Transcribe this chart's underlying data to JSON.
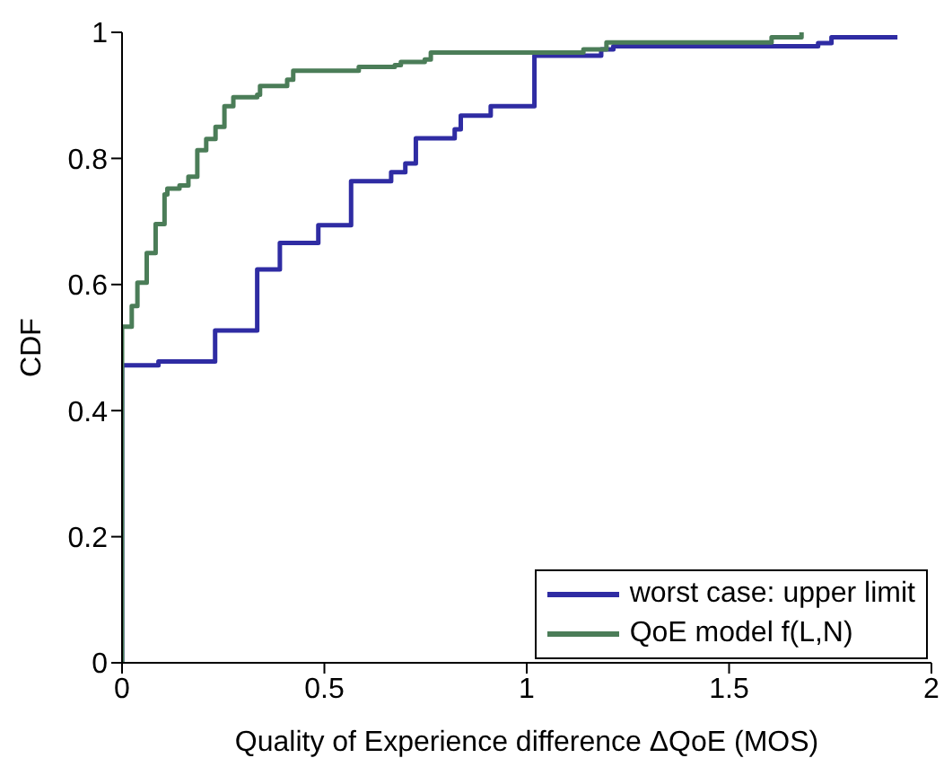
{
  "chart_data": {
    "type": "step",
    "xlabel": "Quality of Experience difference ΔQoE (MOS)",
    "ylabel": "CDF",
    "xlim": [
      0,
      2
    ],
    "xticks": [
      0,
      0.5,
      1,
      1.5,
      2
    ],
    "ylim": [
      0,
      1
    ],
    "yticks": [
      0,
      0.2,
      0.4,
      0.6,
      0.8,
      1
    ],
    "legend": "bottom right",
    "line_style": "solid",
    "marker": "none",
    "series": [
      {
        "name": "worst case: upper limit",
        "color": "#2f2ca3",
        "x": [
          0,
          0,
          0.09,
          0.23,
          0.334,
          0.39,
          0.485,
          0.566,
          0.665,
          0.7,
          0.726,
          0.822,
          0.837,
          0.911,
          1.019,
          1.184,
          1.214,
          1.72,
          1.753,
          1.916
        ],
        "values": [
          0,
          0.472,
          0.478,
          0.527,
          0.624,
          0.666,
          0.694,
          0.764,
          0.778,
          0.792,
          0.832,
          0.846,
          0.868,
          0.883,
          0.963,
          0.973,
          0.978,
          0.983,
          0.992,
          0.992
        ]
      },
      {
        "name": "QoE model f(L,N)",
        "color": "#4b7d58",
        "x": [
          0,
          0,
          0.024,
          0.038,
          0.061,
          0.083,
          0.105,
          0.112,
          0.142,
          0.164,
          0.186,
          0.208,
          0.231,
          0.253,
          0.275,
          0.334,
          0.341,
          0.408,
          0.423,
          0.571,
          0.585,
          0.674,
          0.689,
          0.748,
          0.763,
          1.14,
          1.197,
          1.605,
          1.679,
          1.68
        ],
        "values": [
          0,
          0.533,
          0.566,
          0.603,
          0.65,
          0.696,
          0.743,
          0.752,
          0.757,
          0.771,
          0.813,
          0.831,
          0.85,
          0.883,
          0.897,
          0.901,
          0.915,
          0.925,
          0.939,
          0.939,
          0.945,
          0.948,
          0.953,
          0.957,
          0.968,
          0.973,
          0.984,
          0.992,
          1,
          1
        ]
      }
    ]
  }
}
